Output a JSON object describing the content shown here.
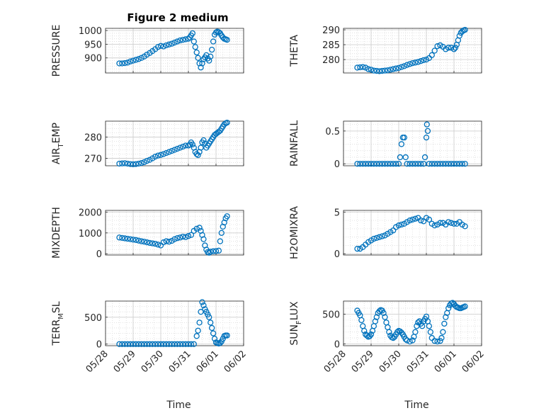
{
  "figure": {
    "title": "Figure 2 medium"
  },
  "colors": {
    "series": "#0072BD",
    "axis": "#262626",
    "grid": "#dcdcdc"
  },
  "chart_data": [
    {
      "type": "scatter",
      "ylabel": "PRESSURE",
      "ylabel_sub": "",
      "ylabel_post": "",
      "xlabel": "",
      "xlim": [
        0,
        5
      ],
      "ylim": [
        845,
        1008
      ],
      "yticks": [
        900,
        950,
        1000
      ],
      "xticks": [
        0,
        1,
        2,
        3,
        4,
        5
      ],
      "xticklabels": [
        "05/28",
        "05/29",
        "05/30",
        "05/31",
        "06/01",
        "06/02"
      ],
      "show_xticklabels": false,
      "x": [
        0.5,
        0.6,
        0.7,
        0.8,
        0.9,
        1.0,
        1.1,
        1.2,
        1.3,
        1.4,
        1.5,
        1.6,
        1.7,
        1.8,
        1.9,
        2.0,
        2.1,
        2.2,
        2.3,
        2.4,
        2.5,
        2.6,
        2.7,
        2.8,
        2.9,
        3.0,
        3.05,
        3.1,
        3.15,
        3.2,
        3.25,
        3.3,
        3.35,
        3.4,
        3.45,
        3.5,
        3.55,
        3.6,
        3.65,
        3.7,
        3.75,
        3.8,
        3.85,
        3.9,
        3.95,
        4.0,
        4.05,
        4.1,
        4.15,
        4.2,
        4.25,
        4.3,
        4.35,
        4.4
      ],
      "y": [
        880,
        880,
        881,
        883,
        887,
        890,
        893,
        896,
        900,
        905,
        912,
        918,
        925,
        932,
        940,
        944,
        942,
        946,
        949,
        952,
        956,
        960,
        964,
        966,
        968,
        970,
        975,
        982,
        990,
        960,
        940,
        920,
        900,
        880,
        865,
        880,
        895,
        902,
        910,
        898,
        890,
        905,
        930,
        960,
        985,
        993,
        996,
        994,
        990,
        982,
        975,
        970,
        968,
        966
      ]
    },
    {
      "type": "scatter",
      "ylabel": "THETA",
      "ylabel_sub": "",
      "ylabel_post": "",
      "xlabel": "",
      "xlim": [
        0,
        5
      ],
      "ylim": [
        275.5,
        290.5
      ],
      "yticks": [
        280,
        285,
        290
      ],
      "xticks": [
        0,
        1,
        2,
        3,
        4,
        5
      ],
      "xticklabels": [
        "05/28",
        "05/29",
        "05/30",
        "05/31",
        "06/01",
        "06/02"
      ],
      "show_xticklabels": false,
      "x": [
        0.5,
        0.6,
        0.7,
        0.8,
        0.9,
        1.0,
        1.1,
        1.2,
        1.3,
        1.4,
        1.5,
        1.6,
        1.7,
        1.8,
        1.9,
        2.0,
        2.1,
        2.2,
        2.3,
        2.4,
        2.5,
        2.6,
        2.7,
        2.8,
        2.9,
        3.0,
        3.1,
        3.2,
        3.3,
        3.4,
        3.5,
        3.6,
        3.7,
        3.8,
        3.9,
        4.0,
        4.05,
        4.1,
        4.15,
        4.2,
        4.25,
        4.3,
        4.35,
        4.4
      ],
      "y": [
        277.3,
        277.4,
        277.5,
        277.3,
        276.8,
        276.6,
        276.3,
        276.2,
        276.1,
        276.2,
        276.3,
        276.4,
        276.6,
        276.8,
        277.0,
        277.2,
        277.5,
        277.8,
        278.2,
        278.5,
        278.8,
        279.0,
        279.2,
        279.5,
        279.8,
        280.0,
        280.5,
        281.5,
        283.0,
        284.5,
        284.8,
        284.3,
        283.5,
        284.0,
        284.0,
        283.5,
        284.0,
        285.0,
        286.5,
        288.0,
        289.0,
        289.5,
        289.8,
        290.0
      ]
    },
    {
      "type": "scatter",
      "ylabel": "AIR",
      "ylabel_sub": "T",
      "ylabel_post": "EMP",
      "xlabel": "",
      "xlim": [
        0,
        5
      ],
      "ylim": [
        266.5,
        287.5
      ],
      "yticks": [
        270,
        280
      ],
      "xticks": [
        0,
        1,
        2,
        3,
        4,
        5
      ],
      "xticklabels": [
        "05/28",
        "05/29",
        "05/30",
        "05/31",
        "06/01",
        "06/02"
      ],
      "show_xticklabels": false,
      "x": [
        0.5,
        0.6,
        0.7,
        0.8,
        0.9,
        1.0,
        1.1,
        1.2,
        1.3,
        1.4,
        1.5,
        1.6,
        1.7,
        1.8,
        1.9,
        2.0,
        2.1,
        2.2,
        2.3,
        2.4,
        2.5,
        2.6,
        2.7,
        2.8,
        2.9,
        3.0,
        3.05,
        3.1,
        3.15,
        3.2,
        3.25,
        3.3,
        3.35,
        3.4,
        3.45,
        3.5,
        3.55,
        3.6,
        3.65,
        3.7,
        3.75,
        3.8,
        3.85,
        3.9,
        3.95,
        4.0,
        4.05,
        4.1,
        4.15,
        4.2,
        4.25,
        4.3,
        4.35,
        4.4
      ],
      "y": [
        267.5,
        267.6,
        267.7,
        267.5,
        267.3,
        267.2,
        267.3,
        267.5,
        267.8,
        268.2,
        268.8,
        269.3,
        270.0,
        270.8,
        271.3,
        271.6,
        272.0,
        272.5,
        273.0,
        273.5,
        274.0,
        274.5,
        275.0,
        275.5,
        276.0,
        276.0,
        276.5,
        277.5,
        276.5,
        275.0,
        273.0,
        272.0,
        271.5,
        273.0,
        275.0,
        277.5,
        278.5,
        277.0,
        275.0,
        276.0,
        277.0,
        278.0,
        279.0,
        280.0,
        281.0,
        281.5,
        282.0,
        282.5,
        283.0,
        284.0,
        285.0,
        286.0,
        286.5,
        286.8
      ]
    },
    {
      "type": "scatter",
      "ylabel": "RAINFALL",
      "ylabel_sub": "",
      "ylabel_post": "",
      "xlabel": "",
      "xlim": [
        0,
        5
      ],
      "ylim": [
        -0.03,
        0.65
      ],
      "yticks": [
        0,
        0.5
      ],
      "xticks": [
        0,
        1,
        2,
        3,
        4,
        5
      ],
      "xticklabels": [
        "05/28",
        "05/29",
        "05/30",
        "05/31",
        "06/01",
        "06/02"
      ],
      "show_xticklabels": false,
      "x": [
        0.5,
        0.6,
        0.7,
        0.8,
        0.9,
        1.0,
        1.1,
        1.2,
        1.3,
        1.4,
        1.5,
        1.6,
        1.7,
        1.8,
        1.9,
        2.0,
        2.05,
        2.1,
        2.15,
        2.2,
        2.25,
        2.3,
        2.4,
        2.5,
        2.6,
        2.7,
        2.8,
        2.9,
        2.95,
        3.0,
        3.02,
        3.05,
        3.1,
        3.2,
        3.3,
        3.4,
        3.5,
        3.6,
        3.7,
        3.8,
        3.9,
        4.0,
        4.1,
        4.2,
        4.3,
        4.4
      ],
      "y": [
        0,
        0,
        0,
        0,
        0,
        0,
        0,
        0,
        0,
        0,
        0,
        0,
        0,
        0,
        0,
        0,
        0.1,
        0.3,
        0.4,
        0.4,
        0.1,
        0,
        0,
        0,
        0,
        0,
        0,
        0,
        0.1,
        0.4,
        0.6,
        0.5,
        0,
        0,
        0,
        0,
        0,
        0,
        0,
        0,
        0,
        0,
        0,
        0,
        0,
        0
      ]
    },
    {
      "type": "scatter",
      "ylabel": "MIXDEPTH",
      "ylabel_sub": "",
      "ylabel_post": "",
      "xlabel": "",
      "xlim": [
        0,
        5
      ],
      "ylim": [
        -60,
        2080
      ],
      "yticks": [
        0,
        1000,
        2000
      ],
      "xticks": [
        0,
        1,
        2,
        3,
        4,
        5
      ],
      "xticklabels": [
        "05/28",
        "05/29",
        "05/30",
        "05/31",
        "06/01",
        "06/02"
      ],
      "show_xticklabels": false,
      "x": [
        0.5,
        0.6,
        0.7,
        0.8,
        0.9,
        1.0,
        1.1,
        1.2,
        1.3,
        1.4,
        1.5,
        1.6,
        1.7,
        1.8,
        1.9,
        2.0,
        2.1,
        2.2,
        2.3,
        2.4,
        2.5,
        2.6,
        2.7,
        2.8,
        2.9,
        3.0,
        3.1,
        3.2,
        3.3,
        3.4,
        3.45,
        3.5,
        3.55,
        3.6,
        3.65,
        3.7,
        3.75,
        3.8,
        3.9,
        4.0,
        4.1,
        4.15,
        4.2,
        4.25,
        4.3,
        4.35,
        4.4
      ],
      "y": [
        780,
        760,
        740,
        720,
        700,
        680,
        660,
        630,
        600,
        580,
        550,
        520,
        500,
        480,
        440,
        400,
        550,
        600,
        580,
        620,
        700,
        750,
        780,
        820,
        800,
        850,
        900,
        1100,
        1200,
        1250,
        1100,
        900,
        700,
        400,
        200,
        80,
        50,
        100,
        120,
        130,
        150,
        600,
        1000,
        1300,
        1500,
        1700,
        1800
      ]
    },
    {
      "type": "scatter",
      "ylabel": "H2OMIXRA",
      "ylabel_sub": "",
      "ylabel_post": "",
      "xlabel": "",
      "xlim": [
        0,
        5
      ],
      "ylim": [
        -0.15,
        5.2
      ],
      "yticks": [
        0,
        5
      ],
      "xticks": [
        0,
        1,
        2,
        3,
        4,
        5
      ],
      "xticklabels": [
        "05/28",
        "05/29",
        "05/30",
        "05/31",
        "06/01",
        "06/02"
      ],
      "show_xticklabels": false,
      "x": [
        0.5,
        0.6,
        0.7,
        0.8,
        0.9,
        1.0,
        1.1,
        1.2,
        1.3,
        1.4,
        1.5,
        1.6,
        1.7,
        1.8,
        1.9,
        2.0,
        2.1,
        2.2,
        2.3,
        2.4,
        2.5,
        2.6,
        2.7,
        2.8,
        2.9,
        3.0,
        3.1,
        3.2,
        3.3,
        3.4,
        3.5,
        3.6,
        3.7,
        3.8,
        3.9,
        4.0,
        4.1,
        4.2,
        4.3,
        4.4
      ],
      "y": [
        0.6,
        0.6,
        0.8,
        1.1,
        1.4,
        1.6,
        1.8,
        1.9,
        2.0,
        2.1,
        2.2,
        2.4,
        2.6,
        2.8,
        3.2,
        3.4,
        3.5,
        3.6,
        3.8,
        4.0,
        4.1,
        4.2,
        4.3,
        4.0,
        3.9,
        4.3,
        4.1,
        3.6,
        3.4,
        3.5,
        3.7,
        3.7,
        3.5,
        3.8,
        3.7,
        3.6,
        3.6,
        3.8,
        3.5,
        3.3
      ]
    },
    {
      "type": "scatter",
      "ylabel": "TERR",
      "ylabel_sub": "M",
      "ylabel_post": "SL",
      "xlabel": "Time",
      "xlim": [
        0,
        5
      ],
      "ylim": [
        -30,
        800
      ],
      "yticks": [
        0,
        500
      ],
      "xticks": [
        0,
        1,
        2,
        3,
        4,
        5
      ],
      "xticklabels": [
        "05/28",
        "05/29",
        "05/30",
        "05/31",
        "06/01",
        "06/02"
      ],
      "show_xticklabels": true,
      "x": [
        0.5,
        0.6,
        0.7,
        0.8,
        0.9,
        1.0,
        1.1,
        1.2,
        1.3,
        1.4,
        1.5,
        1.6,
        1.7,
        1.8,
        1.9,
        2.0,
        2.1,
        2.2,
        2.3,
        2.4,
        2.5,
        2.6,
        2.7,
        2.8,
        2.9,
        3.0,
        3.1,
        3.2,
        3.3,
        3.35,
        3.4,
        3.45,
        3.5,
        3.55,
        3.6,
        3.65,
        3.7,
        3.75,
        3.8,
        3.85,
        3.9,
        3.95,
        4.0,
        4.05,
        4.1,
        4.15,
        4.2,
        4.25,
        4.3,
        4.35,
        4.4
      ],
      "y": [
        0,
        0,
        0,
        0,
        0,
        0,
        0,
        0,
        0,
        0,
        0,
        0,
        0,
        0,
        0,
        0,
        0,
        0,
        0,
        0,
        0,
        0,
        0,
        0,
        0,
        0,
        0,
        0,
        150,
        250,
        400,
        600,
        780,
        720,
        650,
        600,
        550,
        500,
        400,
        300,
        200,
        100,
        30,
        20,
        10,
        20,
        50,
        100,
        150,
        160,
        160
      ]
    },
    {
      "type": "scatter",
      "ylabel": "SUN",
      "ylabel_sub": "F",
      "ylabel_post": "LUX",
      "xlabel": "Time",
      "xlim": [
        0,
        5
      ],
      "ylim": [
        -30,
        720
      ],
      "yticks": [
        0,
        500
      ],
      "xticks": [
        0,
        1,
        2,
        3,
        4,
        5
      ],
      "xticklabels": [
        "05/28",
        "05/29",
        "05/30",
        "05/31",
        "06/01",
        "06/02"
      ],
      "show_xticklabels": true,
      "x": [
        0.5,
        0.55,
        0.6,
        0.65,
        0.7,
        0.75,
        0.8,
        0.85,
        0.9,
        0.95,
        1.0,
        1.05,
        1.1,
        1.15,
        1.2,
        1.25,
        1.3,
        1.35,
        1.4,
        1.45,
        1.5,
        1.55,
        1.6,
        1.65,
        1.7,
        1.75,
        1.8,
        1.85,
        1.9,
        1.95,
        2.0,
        2.05,
        2.1,
        2.15,
        2.2,
        2.25,
        2.3,
        2.4,
        2.5,
        2.55,
        2.6,
        2.65,
        2.7,
        2.75,
        2.8,
        2.85,
        2.9,
        2.95,
        3.0,
        3.05,
        3.1,
        3.15,
        3.2,
        3.3,
        3.4,
        3.5,
        3.55,
        3.6,
        3.65,
        3.7,
        3.75,
        3.8,
        3.85,
        3.9,
        3.95,
        4.0,
        4.05,
        4.1,
        4.15,
        4.2,
        4.25,
        4.3,
        4.35,
        4.4
      ],
      "y": [
        560,
        520,
        480,
        400,
        300,
        220,
        160,
        140,
        120,
        130,
        160,
        220,
        300,
        380,
        450,
        520,
        550,
        570,
        560,
        520,
        450,
        360,
        280,
        200,
        140,
        110,
        100,
        120,
        160,
        200,
        220,
        210,
        190,
        160,
        120,
        80,
        60,
        40,
        60,
        120,
        200,
        300,
        360,
        380,
        340,
        300,
        380,
        420,
        460,
        380,
        300,
        200,
        100,
        50,
        40,
        50,
        100,
        200,
        340,
        450,
        520,
        600,
        650,
        680,
        690,
        670,
        640,
        620,
        610,
        600,
        600,
        610,
        620,
        630
      ]
    }
  ]
}
